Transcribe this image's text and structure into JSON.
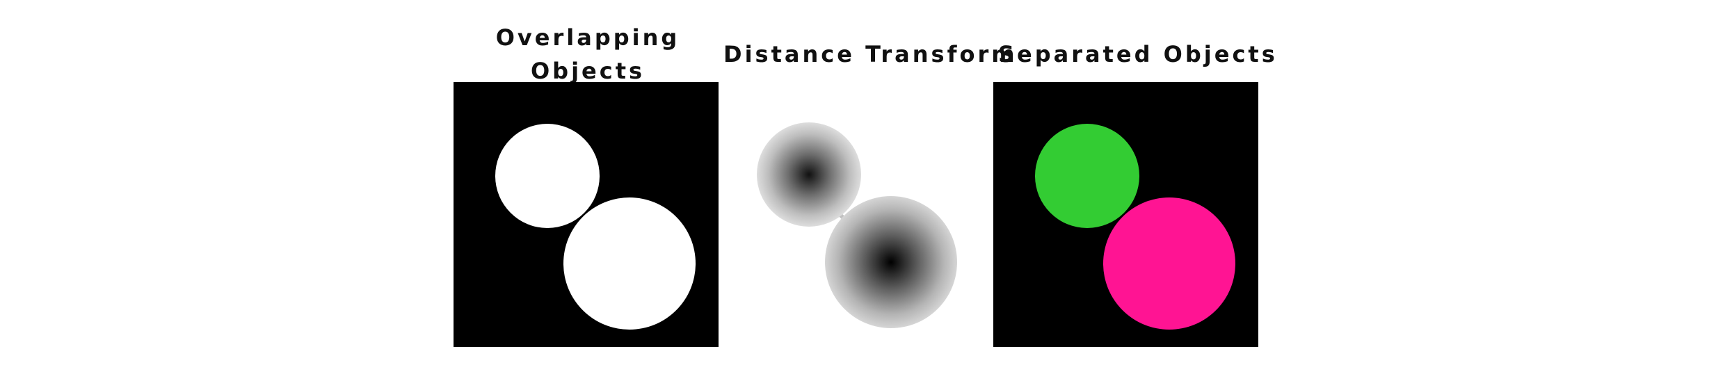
{
  "titles": {
    "overlapping": "Overlapping Objects",
    "distance": "Distance Transform",
    "separated": "Separated Objects"
  },
  "colors": {
    "background": "#000000",
    "object": "#ffffff",
    "object_a_label": "#33cc33",
    "object_b_label": "#ff1493"
  }
}
